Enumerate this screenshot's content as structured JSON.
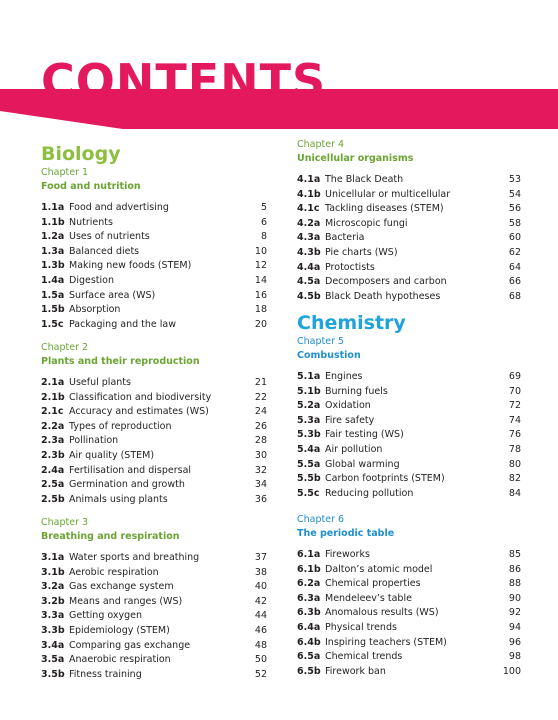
{
  "title": "CONTENTS",
  "colors": {
    "magenta": "#e4185d",
    "biology": "#8cbf3f",
    "chemistry": "#1fa3dc"
  },
  "left": {
    "subject": "Biology",
    "chapters": [
      {
        "number": "Chapter 1",
        "title": "Food and nutrition",
        "items": [
          {
            "code": "1.1a",
            "name": "Food and advertising",
            "page": "5"
          },
          {
            "code": "1.1b",
            "name": "Nutrients",
            "page": "6"
          },
          {
            "code": "1.2a",
            "name": "Uses of nutrients",
            "page": "8"
          },
          {
            "code": "1.3a",
            "name": "Balanced diets",
            "page": "10"
          },
          {
            "code": "1.3b",
            "name": "Making new foods (STEM)",
            "page": "12"
          },
          {
            "code": "1.4a",
            "name": "Digestion",
            "page": "14"
          },
          {
            "code": "1.5a",
            "name": "Surface area (WS)",
            "page": "16"
          },
          {
            "code": "1.5b",
            "name": "Absorption",
            "page": "18"
          },
          {
            "code": "1.5c",
            "name": "Packaging and the law",
            "page": "20"
          }
        ]
      },
      {
        "number": "Chapter 2",
        "title": "Plants and their reproduction",
        "items": [
          {
            "code": "2.1a",
            "name": "Useful plants",
            "page": "21"
          },
          {
            "code": "2.1b",
            "name": "Classification and biodiversity",
            "page": "22"
          },
          {
            "code": "2.1c",
            "name": "Accuracy and estimates (WS)",
            "page": "24"
          },
          {
            "code": "2.2a",
            "name": "Types of reproduction",
            "page": "26"
          },
          {
            "code": "2.3a",
            "name": "Pollination",
            "page": "28"
          },
          {
            "code": "2.3b",
            "name": "Air quality (STEM)",
            "page": "30"
          },
          {
            "code": "2.4a",
            "name": "Fertilisation and dispersal",
            "page": "32"
          },
          {
            "code": "2.5a",
            "name": "Germination and growth",
            "page": "34"
          },
          {
            "code": "2.5b",
            "name": "Animals using plants",
            "page": "36"
          }
        ]
      },
      {
        "number": "Chapter 3",
        "title": "Breathing and respiration",
        "items": [
          {
            "code": "3.1a",
            "name": "Water sports and breathing",
            "page": "37"
          },
          {
            "code": "3.1b",
            "name": "Aerobic respiration",
            "page": "38"
          },
          {
            "code": "3.2a",
            "name": "Gas exchange system",
            "page": "40"
          },
          {
            "code": "3.2b",
            "name": "Means and ranges (WS)",
            "page": "42"
          },
          {
            "code": "3.3a",
            "name": "Getting oxygen",
            "page": "44"
          },
          {
            "code": "3.3b",
            "name": "Epidemiology (STEM)",
            "page": "46"
          },
          {
            "code": "3.4a",
            "name": "Comparing gas exchange",
            "page": "48"
          },
          {
            "code": "3.5a",
            "name": "Anaerobic respiration",
            "page": "50"
          },
          {
            "code": "3.5b",
            "name": "Fitness training",
            "page": "52"
          }
        ]
      }
    ]
  },
  "right": {
    "chapter4": {
      "number": "Chapter 4",
      "title": "Unicellular organisms",
      "items": [
        {
          "code": "4.1a",
          "name": "The Black Death",
          "page": "53"
        },
        {
          "code": "4.1b",
          "name": "Unicellular or multicellular",
          "page": "54"
        },
        {
          "code": "4.1c",
          "name": "Tackling diseases (STEM)",
          "page": "56"
        },
        {
          "code": "4.2a",
          "name": "Microscopic fungi",
          "page": "58"
        },
        {
          "code": "4.3a",
          "name": "Bacteria",
          "page": "60"
        },
        {
          "code": "4.3b",
          "name": "Pie charts (WS)",
          "page": "62"
        },
        {
          "code": "4.4a",
          "name": "Protoctists",
          "page": "64"
        },
        {
          "code": "4.5a",
          "name": "Decomposers and carbon",
          "page": "66"
        },
        {
          "code": "4.5b",
          "name": "Black Death hypotheses",
          "page": "68"
        }
      ]
    },
    "subject": "Chemistry",
    "chapters": [
      {
        "number": "Chapter 5",
        "title": "Combustion",
        "items": [
          {
            "code": "5.1a",
            "name": "Engines",
            "page": "69"
          },
          {
            "code": "5.1b",
            "name": "Burning fuels",
            "page": "70"
          },
          {
            "code": "5.2a",
            "name": "Oxidation",
            "page": "72"
          },
          {
            "code": "5.3a",
            "name": "Fire safety",
            "page": "74"
          },
          {
            "code": "5.3b",
            "name": "Fair testing (WS)",
            "page": "76"
          },
          {
            "code": "5.4a",
            "name": "Air pollution",
            "page": "78"
          },
          {
            "code": "5.5a",
            "name": "Global warming",
            "page": "80"
          },
          {
            "code": "5.5b",
            "name": "Carbon footprints (STEM)",
            "page": "82"
          },
          {
            "code": "5.5c",
            "name": "Reducing pollution",
            "page": "84"
          }
        ]
      },
      {
        "number": "Chapter 6",
        "title": "The periodic table",
        "items": [
          {
            "code": "6.1a",
            "name": "Fireworks",
            "page": "85"
          },
          {
            "code": "6.1b",
            "name": "Dalton’s atomic model",
            "page": "86"
          },
          {
            "code": "6.2a",
            "name": "Chemical properties",
            "page": "88"
          },
          {
            "code": "6.3a",
            "name": "Mendeleev’s table",
            "page": "90"
          },
          {
            "code": "6.3b",
            "name": "Anomalous results (WS)",
            "page": "92"
          },
          {
            "code": "6.4a",
            "name": "Physical trends",
            "page": "94"
          },
          {
            "code": "6.4b",
            "name": "Inspiring teachers (STEM)",
            "page": "96"
          },
          {
            "code": "6.5a",
            "name": "Chemical trends",
            "page": "98"
          },
          {
            "code": "6.5b",
            "name": "Firework ban",
            "page": "100"
          }
        ]
      }
    ]
  }
}
